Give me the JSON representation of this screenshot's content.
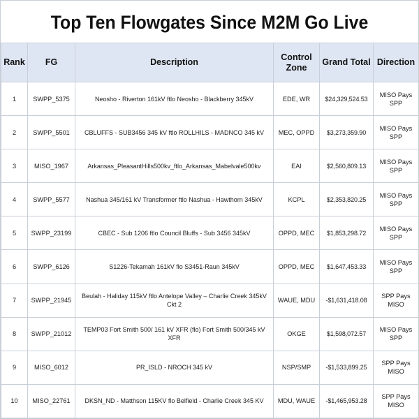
{
  "title": "Top Ten Flowgates Since M2M Go Live",
  "headers": {
    "rank": "Rank",
    "fg": "FG",
    "description": "Description",
    "zone": "Control Zone",
    "total": "Grand Total",
    "direction": "Direction"
  },
  "rows": [
    {
      "rank": "1",
      "fg": "SWPP_5375",
      "description": "Neosho - Riverton 161kV ftlo Neosho - Blackberry 345kV",
      "zone": "EDE, WR",
      "total": "$24,329,524.53",
      "direction": "MISO Pays SPP"
    },
    {
      "rank": "2",
      "fg": "SWPP_5501",
      "description": "CBLUFFS - SUB3456 345 kV ftlo ROLLHILS - MADNCO 345 kV",
      "zone": "MEC, OPPD",
      "total": "$3,273,359.90",
      "direction": "MISO Pays SPP"
    },
    {
      "rank": "3",
      "fg": "MISO_1967",
      "description": "Arkansas_PleasantHills500kv_ftlo_Arkansas_Mabelvale500kv",
      "zone": "EAI",
      "total": "$2,560,809.13",
      "direction": "MISO Pays SPP"
    },
    {
      "rank": "4",
      "fg": "SWPP_5577",
      "description": "Nashua 345/161 kV Transformer ftlo Nashua - Hawthorn 345kV",
      "zone": "KCPL",
      "total": "$2,353,820.25",
      "direction": "MISO Pays SPP"
    },
    {
      "rank": "5",
      "fg": "SWPP_23199",
      "description": "CBEC - Sub 1206 ftlo Council Bluffs - Sub 3456 345kV",
      "zone": "OPPD, MEC",
      "total": "$1,853,298.72",
      "direction": "MISO Pays SPP"
    },
    {
      "rank": "6",
      "fg": "SWPP_6126",
      "description": "S1226-Tekamah 161kV flo S3451-Raun 345kV",
      "zone": "OPPD, MEC",
      "total": "$1,647,453.33",
      "direction": "MISO Pays SPP"
    },
    {
      "rank": "7",
      "fg": "SWPP_21945",
      "description": "Beulah - Haliday 115kV ftlo Antelope Valley – Charlie Creek 345kV Ckt 2",
      "zone": "WAUE, MDU",
      "total": "-$1,631,418.08",
      "direction": "SPP Pays MISO"
    },
    {
      "rank": "8",
      "fg": "SWPP_21012",
      "description": "TEMP03 Fort Smith 500/ 161 kV XFR (flo) Fort Smith 500/345 kV XFR",
      "zone": "OKGE",
      "total": "$1,598,072.57",
      "direction": "MISO Pays SPP"
    },
    {
      "rank": "9",
      "fg": "MISO_6012",
      "description": "PR_ISLD - NROCH 345 kV",
      "zone": "NSP/SMP",
      "total": "-$1,533,899.25",
      "direction": "SPP Pays MISO"
    },
    {
      "rank": "10",
      "fg": "MISO_22761",
      "description": "DKSN_ND - Matthson 115KV flo Belfield - Charlie Creek 345 KV",
      "zone": "MDU, WAUE",
      "total": "-$1,465,953.28",
      "direction": "SPP Pays MISO"
    }
  ]
}
